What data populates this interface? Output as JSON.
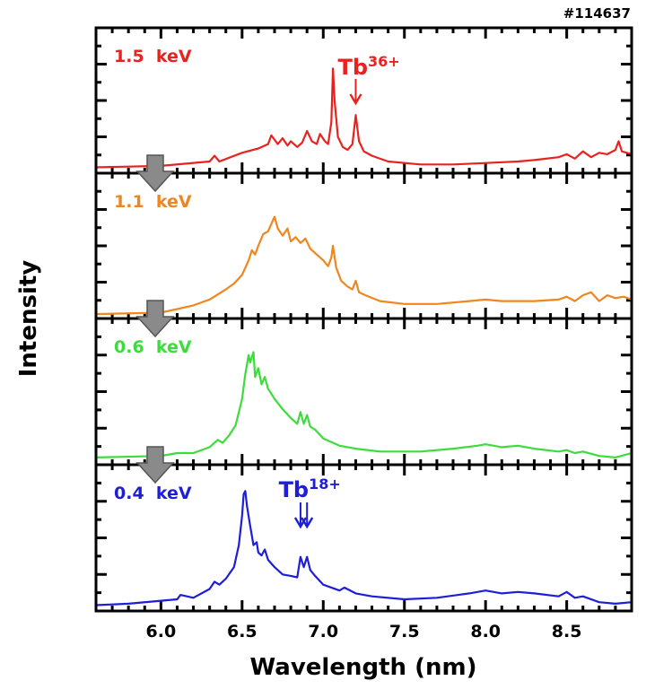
{
  "chart_data": {
    "type": "line",
    "shot_label": "#114637",
    "xlabel": "Wavelength (nm)",
    "ylabel": "Intensity",
    "xlim": [
      5.6,
      8.9
    ],
    "xticks": [
      "6.0",
      "6.5",
      "7.0",
      "7.5",
      "8.0",
      "8.5"
    ],
    "xtick_values": [
      6.0,
      6.5,
      7.0,
      7.5,
      8.0,
      8.5
    ],
    "ylim": [
      0,
      1
    ],
    "y_units": "arbitrary (normalized per panel)",
    "grid": false,
    "layout": "4 stacked panels sharing x-axis",
    "panels": [
      {
        "label": "1.5 keV",
        "color": "#e8231f",
        "annotation": {
          "text": "Tb",
          "sup": "36+",
          "arrows_at": [
            7.2
          ]
        },
        "x": [
          5.6,
          6.0,
          6.3,
          6.33,
          6.36,
          6.5,
          6.6,
          6.66,
          6.68,
          6.72,
          6.75,
          6.78,
          6.8,
          6.84,
          6.87,
          6.9,
          6.93,
          6.96,
          6.98,
          7.01,
          7.03,
          7.05,
          7.06,
          7.07,
          7.09,
          7.12,
          7.15,
          7.18,
          7.2,
          7.22,
          7.25,
          7.3,
          7.4,
          7.6,
          7.8,
          8.0,
          8.2,
          8.3,
          8.45,
          8.5,
          8.55,
          8.6,
          8.65,
          8.7,
          8.75,
          8.8,
          8.82,
          8.84,
          8.9
        ],
        "y": [
          0.04,
          0.05,
          0.08,
          0.12,
          0.08,
          0.14,
          0.17,
          0.2,
          0.26,
          0.2,
          0.24,
          0.19,
          0.22,
          0.18,
          0.21,
          0.29,
          0.22,
          0.2,
          0.27,
          0.22,
          0.2,
          0.35,
          0.72,
          0.5,
          0.25,
          0.18,
          0.16,
          0.2,
          0.4,
          0.22,
          0.15,
          0.12,
          0.08,
          0.06,
          0.06,
          0.07,
          0.08,
          0.09,
          0.11,
          0.13,
          0.1,
          0.15,
          0.11,
          0.14,
          0.13,
          0.16,
          0.22,
          0.15,
          0.13
        ]
      },
      {
        "label": "1.1 keV",
        "color": "#f0861e",
        "x": [
          5.6,
          6.0,
          6.2,
          6.3,
          6.4,
          6.45,
          6.5,
          6.54,
          6.56,
          6.58,
          6.6,
          6.63,
          6.66,
          6.7,
          6.72,
          6.75,
          6.78,
          6.8,
          6.83,
          6.86,
          6.89,
          6.92,
          6.95,
          7.0,
          7.03,
          7.05,
          7.06,
          7.08,
          7.11,
          7.15,
          7.18,
          7.2,
          7.22,
          7.26,
          7.35,
          7.5,
          7.7,
          7.9,
          8.0,
          8.1,
          8.3,
          8.45,
          8.5,
          8.55,
          8.6,
          8.65,
          8.7,
          8.75,
          8.8,
          8.85,
          8.9
        ],
        "y": [
          0.03,
          0.04,
          0.09,
          0.13,
          0.2,
          0.24,
          0.3,
          0.4,
          0.47,
          0.44,
          0.5,
          0.58,
          0.6,
          0.7,
          0.62,
          0.57,
          0.62,
          0.53,
          0.56,
          0.52,
          0.55,
          0.48,
          0.45,
          0.4,
          0.36,
          0.42,
          0.5,
          0.35,
          0.26,
          0.22,
          0.2,
          0.26,
          0.18,
          0.16,
          0.12,
          0.1,
          0.1,
          0.12,
          0.13,
          0.12,
          0.12,
          0.13,
          0.15,
          0.12,
          0.16,
          0.18,
          0.12,
          0.16,
          0.14,
          0.15,
          0.13
        ]
      },
      {
        "label": "0.6 keV",
        "color": "#3ddc3d",
        "x": [
          5.6,
          6.0,
          6.1,
          6.2,
          6.3,
          6.35,
          6.38,
          6.42,
          6.46,
          6.5,
          6.52,
          6.54,
          6.55,
          6.57,
          6.58,
          6.6,
          6.62,
          6.64,
          6.66,
          6.7,
          6.75,
          6.8,
          6.84,
          6.86,
          6.88,
          6.9,
          6.92,
          6.95,
          7.0,
          7.1,
          7.2,
          7.35,
          7.6,
          7.8,
          7.95,
          8.0,
          8.1,
          8.2,
          8.3,
          8.45,
          8.5,
          8.55,
          8.6,
          8.7,
          8.8,
          8.9
        ],
        "y": [
          0.05,
          0.06,
          0.08,
          0.08,
          0.12,
          0.17,
          0.15,
          0.2,
          0.27,
          0.45,
          0.62,
          0.75,
          0.7,
          0.77,
          0.6,
          0.66,
          0.55,
          0.6,
          0.52,
          0.45,
          0.38,
          0.32,
          0.28,
          0.36,
          0.28,
          0.34,
          0.26,
          0.24,
          0.18,
          0.13,
          0.11,
          0.09,
          0.09,
          0.11,
          0.13,
          0.14,
          0.12,
          0.13,
          0.11,
          0.09,
          0.1,
          0.08,
          0.09,
          0.06,
          0.05,
          0.08
        ]
      },
      {
        "label": "0.4 keV",
        "color": "#1e1ed8",
        "annotation": {
          "text": "Tb",
          "sup": "18+",
          "arrows_at": [
            6.86,
            6.9
          ]
        },
        "x": [
          5.6,
          5.8,
          6.0,
          6.1,
          6.12,
          6.2,
          6.3,
          6.33,
          6.36,
          6.4,
          6.45,
          6.48,
          6.5,
          6.51,
          6.52,
          6.53,
          6.55,
          6.57,
          6.59,
          6.6,
          6.62,
          6.64,
          6.66,
          6.7,
          6.75,
          6.8,
          6.84,
          6.86,
          6.88,
          6.9,
          6.92,
          6.95,
          7.0,
          7.1,
          7.13,
          7.2,
          7.3,
          7.5,
          7.7,
          7.9,
          8.0,
          8.1,
          8.2,
          8.3,
          8.45,
          8.5,
          8.55,
          8.6,
          8.7,
          8.8,
          8.9
        ],
        "y": [
          0.04,
          0.05,
          0.07,
          0.08,
          0.11,
          0.09,
          0.15,
          0.2,
          0.18,
          0.22,
          0.3,
          0.45,
          0.65,
          0.8,
          0.82,
          0.72,
          0.58,
          0.45,
          0.47,
          0.4,
          0.38,
          0.42,
          0.35,
          0.3,
          0.25,
          0.24,
          0.23,
          0.37,
          0.3,
          0.37,
          0.28,
          0.24,
          0.18,
          0.14,
          0.16,
          0.12,
          0.1,
          0.08,
          0.09,
          0.12,
          0.14,
          0.12,
          0.13,
          0.12,
          0.1,
          0.13,
          0.09,
          0.1,
          0.06,
          0.05,
          0.06
        ]
      }
    ],
    "transition_arrow_color": "#8a8a8a"
  }
}
